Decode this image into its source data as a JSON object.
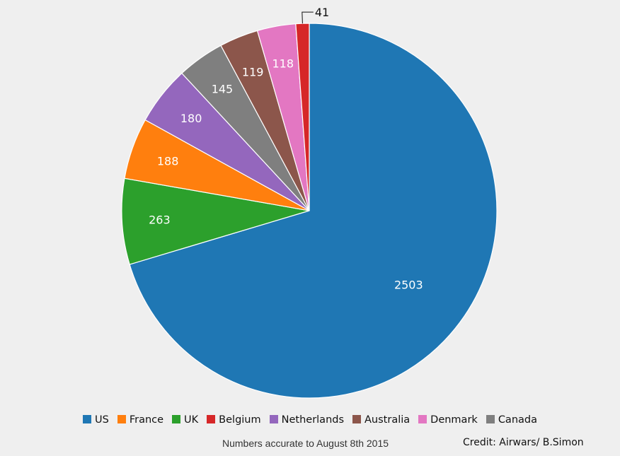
{
  "chart_data": {
    "type": "pie",
    "title": "",
    "categories": [
      "US",
      "France",
      "UK",
      "Belgium",
      "Netherlands",
      "Australia",
      "Denmark",
      "Canada"
    ],
    "values": [
      2503,
      188,
      263,
      41,
      180,
      119,
      118,
      145
    ],
    "colors": {
      "US": "#1f77b4",
      "France": "#ff7f0e",
      "UK": "#2ca02c",
      "Belgium": "#d62728",
      "Netherlands": "#9467bd",
      "Australia": "#8c564b",
      "Denmark": "#e377c2",
      "Canada": "#7f7f7f"
    },
    "slice_order": [
      "US",
      "UK",
      "France",
      "Netherlands",
      "Canada",
      "Australia",
      "Denmark",
      "Belgium"
    ],
    "slice_labels": [
      "2503",
      "263",
      "188",
      "180",
      "145",
      "119",
      "118",
      "41"
    ],
    "legend_placement": "bottom",
    "legend": [
      "US",
      "France",
      "UK",
      "Belgium",
      "Netherlands",
      "Australia",
      "Denmark",
      "Canada"
    ]
  },
  "footer": {
    "note": "Numbers accurate to August 8th 2015",
    "credit": "Credit: Airwars/ B.Simon"
  }
}
